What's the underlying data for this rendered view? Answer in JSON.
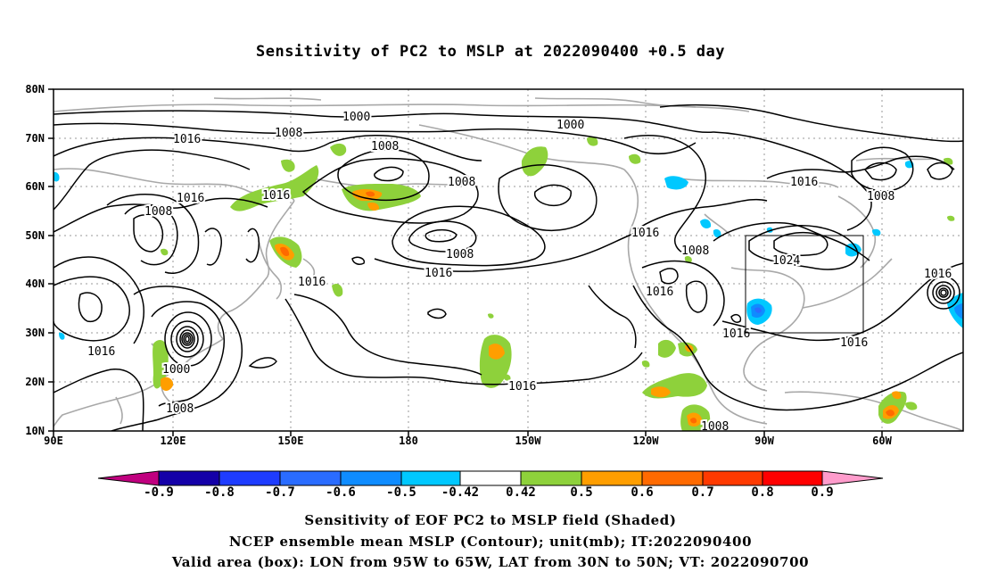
{
  "title": "Sensitivity of PC2 to MSLP at 2022090400 +0.5 day",
  "lat_labels": [
    "80N",
    "70N",
    "60N",
    "50N",
    "40N",
    "30N",
    "20N",
    "10N"
  ],
  "lon_labels": [
    "90E",
    "120E",
    "150E",
    "180",
    "150W",
    "120W",
    "90W",
    "60W"
  ],
  "contour_labels": [
    "1000",
    "1008",
    "1016",
    "1000",
    "1008",
    "1008",
    "1008",
    "1016",
    "1016",
    "1008",
    "1016",
    "1008",
    "1016",
    "1016",
    "1024",
    "1016",
    "1016",
    "1016",
    "1016",
    "1016",
    "1000",
    "1008",
    "1016",
    "1008",
    "1016"
  ],
  "colorbar": {
    "labels": [
      "-0.9",
      "-0.8",
      "-0.7",
      "-0.6",
      "-0.5",
      "-0.42",
      "0.42",
      "0.5",
      "0.6",
      "0.7",
      "0.8",
      "0.9"
    ],
    "colors": [
      "#c0007f",
      "#1400a8",
      "#1e3cff",
      "#2a6cff",
      "#0f8cff",
      "#00c8ff",
      "#ffffff",
      "#8ed13b",
      "#ff9e00",
      "#ff6a00",
      "#ff3a00",
      "#ff0000",
      "#ff9ccc"
    ]
  },
  "valid_box": {
    "lon_from": "95W",
    "lon_to": "65W",
    "lat_from": "30N",
    "lat_to": "50N"
  },
  "captions": [
    "Sensitivity of EOF PC2 to MSLP field (Shaded)",
    "NCEP ensemble mean MSLP (Contour); unit(mb); IT:2022090400",
    "Valid area (box): LON from 95W to 65W, LAT from 30N to 50N; VT: 2022090700"
  ]
}
